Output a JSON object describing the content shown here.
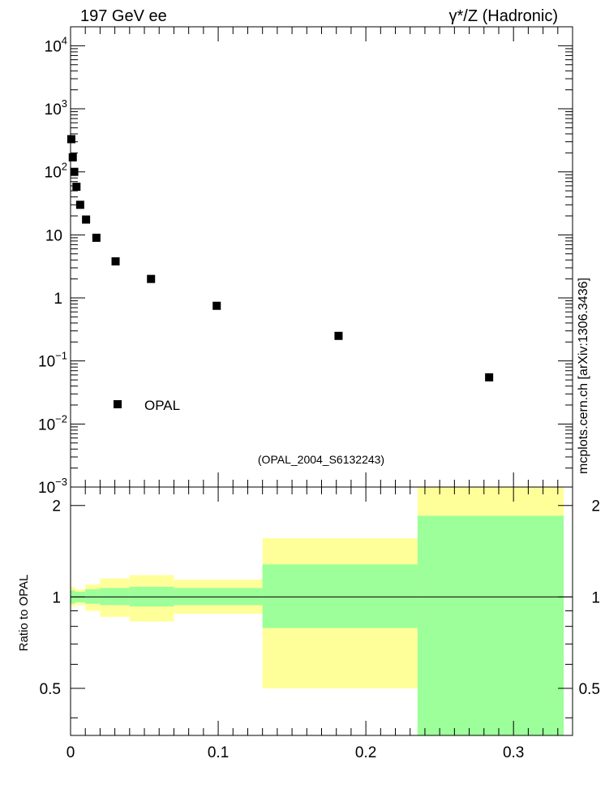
{
  "chart_data": [
    {
      "type": "scatter",
      "title_left": "197 GeV ee",
      "title_right": "γ*/Z (Hadronic)",
      "side_label": "mcplots.cern.ch [arXiv:1306.3436]",
      "watermark": "(OPAL_2004_S6132243)",
      "yscale": "log",
      "ylim": [
        0.001,
        20000
      ],
      "xlim": [
        0,
        0.34
      ],
      "legend": {
        "placement": "bottom-left",
        "entries": [
          "OPAL"
        ]
      },
      "y_ticks": [
        {
          "value": 10000,
          "base": "10",
          "exp": "4"
        },
        {
          "value": 1000,
          "base": "10",
          "exp": "3"
        },
        {
          "value": 100,
          "base": "10",
          "exp": "2"
        },
        {
          "value": 10,
          "base": "10",
          "exp": ""
        },
        {
          "value": 1,
          "base": "1",
          "exp": ""
        },
        {
          "value": 0.1,
          "base": "10",
          "exp": "−1"
        },
        {
          "value": 0.01,
          "base": "10",
          "exp": "−2"
        },
        {
          "value": 0.001,
          "base": "10",
          "exp": "−3"
        }
      ],
      "series": [
        {
          "name": "OPAL",
          "color": "#000000",
          "x": [
            0.0005,
            0.0015,
            0.0025,
            0.004,
            0.0065,
            0.0105,
            0.0175,
            0.0305,
            0.0545,
            0.099,
            0.1815,
            0.2835
          ],
          "y": [
            330,
            170,
            100,
            58,
            30,
            17.5,
            9,
            3.8,
            2.0,
            0.75,
            0.25,
            0.055
          ]
        }
      ]
    },
    {
      "type": "area",
      "ylabel": "Ratio to OPAL",
      "ylim": [
        0.35,
        2.3
      ],
      "xlim": [
        0,
        0.34
      ],
      "x_ticks": [
        "0",
        "0.1",
        "0.2",
        "0.3"
      ],
      "y_ticks": [
        "0.5",
        "1",
        "2"
      ],
      "reference_line": 1,
      "bands": [
        {
          "x0": 0.0,
          "x1": 0.003,
          "inner_lo": 0.95,
          "inner_hi": 1.05,
          "outer_lo": 0.93,
          "outer_hi": 1.08
        },
        {
          "x0": 0.003,
          "x1": 0.01,
          "inner_lo": 0.96,
          "inner_hi": 1.04,
          "outer_lo": 0.94,
          "outer_hi": 1.06
        },
        {
          "x0": 0.01,
          "x1": 0.02,
          "inner_lo": 0.95,
          "inner_hi": 1.06,
          "outer_lo": 0.9,
          "outer_hi": 1.1
        },
        {
          "x0": 0.02,
          "x1": 0.04,
          "inner_lo": 0.94,
          "inner_hi": 1.07,
          "outer_lo": 0.86,
          "outer_hi": 1.15
        },
        {
          "x0": 0.04,
          "x1": 0.07,
          "inner_lo": 0.93,
          "inner_hi": 1.08,
          "outer_lo": 0.83,
          "outer_hi": 1.18
        },
        {
          "x0": 0.07,
          "x1": 0.13,
          "inner_lo": 0.94,
          "inner_hi": 1.07,
          "outer_lo": 0.88,
          "outer_hi": 1.14
        },
        {
          "x0": 0.13,
          "x1": 0.235,
          "inner_lo": 0.79,
          "inner_hi": 1.28,
          "outer_lo": 0.5,
          "outer_hi": 1.56
        },
        {
          "x0": 0.235,
          "x1": 0.334,
          "inner_lo": 0.35,
          "inner_hi": 1.85,
          "outer_lo": 0.35,
          "outer_hi": 2.3
        }
      ],
      "colors": {
        "inner": "#9cff99",
        "outer": "#ffff99",
        "line": "#000000"
      }
    }
  ]
}
